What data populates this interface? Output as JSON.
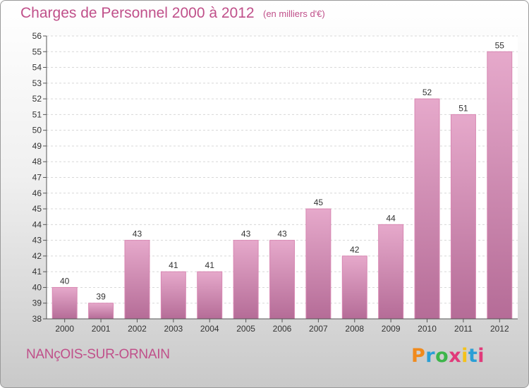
{
  "header": {
    "title": "Charges de Personnel 2000 à 2012",
    "unit": "(en milliers d'€)"
  },
  "footer": {
    "commune": "NANçOIS-SUR-ORNAIN",
    "logo_letters": [
      "P",
      "r",
      "o",
      "x",
      "i",
      "t",
      "i"
    ],
    "logo_colors": [
      "#f08a1c",
      "#2a9fd6",
      "#3db54a",
      "#e13a7a",
      "#f4c21b",
      "#2a9fd6",
      "#e13a7a"
    ]
  },
  "colors": {
    "bar": "#d887b2",
    "bar_light": "#e6a9cb",
    "bar_dark": "#b56c97",
    "title": "#c0508a"
  },
  "chart_data": {
    "type": "bar",
    "title": "Charges de Personnel 2000 à 2012",
    "subtitle": "(en milliers d'€)",
    "xlabel": "",
    "ylabel": "",
    "categories": [
      "2000",
      "2001",
      "2002",
      "2003",
      "2004",
      "2005",
      "2006",
      "2007",
      "2008",
      "2009",
      "2010",
      "2011",
      "2012"
    ],
    "values": [
      40,
      39,
      43,
      41,
      41,
      43,
      43,
      45,
      42,
      44,
      52,
      51,
      55
    ],
    "ylim": [
      38,
      56
    ],
    "yticks": [
      38,
      39,
      40,
      41,
      42,
      43,
      44,
      45,
      46,
      47,
      48,
      49,
      50,
      51,
      52,
      53,
      54,
      55,
      56
    ],
    "grid": true,
    "legend": "none"
  }
}
